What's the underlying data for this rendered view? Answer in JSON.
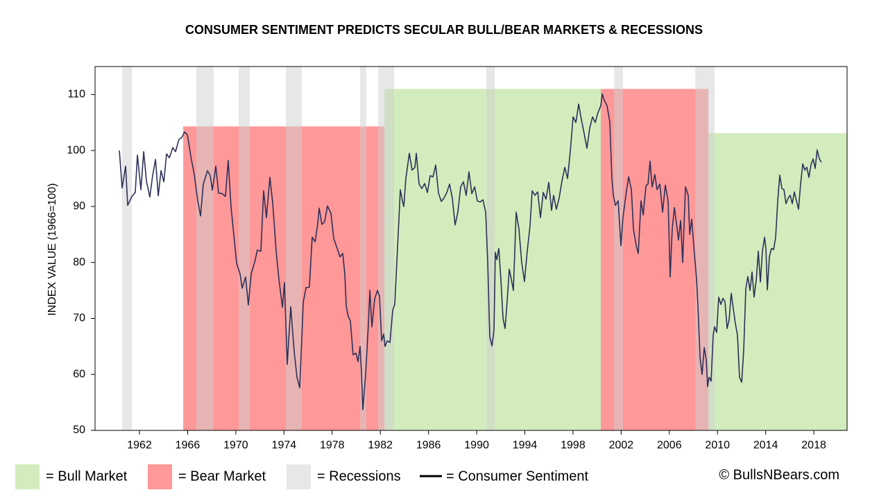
{
  "chart_data": {
    "type": "line",
    "title": "CONSUMER  SENTIMENT  PREDICTS SECULAR BULL/BEAR MARKETS & RECESSIONS",
    "y_label": "INDEX VALUE (1966=100)",
    "credit": "© BullsNBears.com",
    "xlim": [
      1958.31,
      2020.76
    ],
    "xticks": [
      1962,
      1966,
      1970,
      1974,
      1978,
      1982,
      1986,
      1990,
      1994,
      1998,
      2002,
      2006,
      2010,
      2014,
      2018
    ],
    "ylim": [
      50,
      115
    ],
    "yticks": [
      50,
      60,
      70,
      80,
      90,
      100,
      110
    ],
    "regions": [
      {
        "name": "= Bull Market",
        "color": "#d3ecbd",
        "spans": [
          {
            "x": [
              1982.34,
              2000.31
            ],
            "top": 111
          },
          {
            "x": [
              2009.24,
              2020.76
            ],
            "top": 103.1
          }
        ]
      },
      {
        "name": "= Bear Market",
        "color": "#ff9898",
        "spans": [
          {
            "x": [
              1965.63,
              1982.34
            ],
            "top": 104.3
          },
          {
            "x": [
              2000.31,
              2009.24
            ],
            "top": 111
          }
        ]
      },
      {
        "name": "= Recessions",
        "color": "#d0d0d0",
        "spans": [
          {
            "x": [
              1960.56,
              1961.37
            ]
          },
          {
            "x": [
              1966.72,
              1968.16
            ]
          },
          {
            "x": [
              1970.24,
              1971.16
            ]
          },
          {
            "x": [
              1974.16,
              1975.48
            ]
          },
          {
            "x": [
              1980.32,
              1980.84
            ]
          },
          {
            "x": [
              1981.82,
              1983.14
            ]
          },
          {
            "x": [
              1990.81,
              1991.5
            ]
          },
          {
            "x": [
              2001.41,
              2002.15
            ]
          },
          {
            "x": [
              2008.15,
              2009.76
            ]
          }
        ]
      }
    ],
    "series": [
      {
        "name": "= Consumer Sentiment",
        "color": "#2c3058",
        "x": [
          1960.33,
          1960.56,
          1960.85,
          1961.02,
          1961.37,
          1961.65,
          1961.83,
          1962.12,
          1962.35,
          1962.58,
          1962.86,
          1963.09,
          1963.33,
          1963.56,
          1963.79,
          1964.02,
          1964.25,
          1964.48,
          1964.77,
          1965.0,
          1965.28,
          1965.51,
          1965.74,
          1965.98,
          1966.26,
          1966.55,
          1966.84,
          1967.07,
          1967.3,
          1967.65,
          1967.88,
          1968.05,
          1968.34,
          1968.57,
          1968.86,
          1969.14,
          1969.37,
          1969.6,
          1969.83,
          1970.07,
          1970.35,
          1970.53,
          1970.81,
          1971.04,
          1971.28,
          1971.56,
          1971.79,
          1972.08,
          1972.31,
          1972.54,
          1972.83,
          1973.06,
          1973.35,
          1973.58,
          1973.87,
          1974.04,
          1974.27,
          1974.56,
          1974.85,
          1975.08,
          1975.31,
          1975.6,
          1975.83,
          1976.11,
          1976.34,
          1976.58,
          1976.81,
          1976.92,
          1977.15,
          1977.38,
          1977.61,
          1977.9,
          1978.13,
          1978.42,
          1978.65,
          1978.88,
          1979.05,
          1979.17,
          1979.34,
          1979.51,
          1979.74,
          1979.97,
          1980.15,
          1980.32,
          1980.44,
          1980.55,
          1980.78,
          1981.01,
          1981.13,
          1981.3,
          1981.53,
          1981.76,
          1981.93,
          1982.11,
          1982.28,
          1982.39,
          1982.57,
          1982.8,
          1983.03,
          1983.2,
          1983.37,
          1983.55,
          1983.66,
          1983.83,
          1983.95,
          1984.12,
          1984.41,
          1984.64,
          1984.87,
          1984.99,
          1985.22,
          1985.45,
          1985.68,
          1985.91,
          1986.14,
          1986.37,
          1986.6,
          1986.83,
          1987.06,
          1987.29,
          1987.52,
          1987.75,
          1987.98,
          1988.21,
          1988.44,
          1988.67,
          1988.9,
          1989.13,
          1989.36,
          1989.6,
          1989.83,
          1990.06,
          1990.29,
          1990.52,
          1990.75,
          1990.92,
          1991.09,
          1991.27,
          1991.44,
          1991.55,
          1991.67,
          1991.84,
          1992.02,
          1992.19,
          1992.36,
          1992.53,
          1992.71,
          1992.88,
          1993.05,
          1993.28,
          1993.51,
          1993.74,
          1993.97,
          1994.2,
          1994.43,
          1994.61,
          1994.84,
          1995.07,
          1995.3,
          1995.53,
          1995.76,
          1995.99,
          1996.22,
          1996.39,
          1996.62,
          1996.85,
          1997.08,
          1997.32,
          1997.55,
          1997.78,
          1998.01,
          1998.24,
          1998.47,
          1998.7,
          1998.93,
          1999.16,
          1999.39,
          1999.62,
          1999.85,
          2000.08,
          2000.31,
          2000.43,
          2000.6,
          2000.83,
          2001.06,
          2001.23,
          2001.35,
          2001.52,
          2001.75,
          2001.98,
          2002.15,
          2002.39,
          2002.62,
          2002.85,
          2003.02,
          2003.25,
          2003.42,
          2003.65,
          2003.83,
          2004.06,
          2004.23,
          2004.4,
          2004.57,
          2004.8,
          2004.98,
          2005.21,
          2005.44,
          2005.67,
          2005.9,
          2006.07,
          2006.24,
          2006.42,
          2006.59,
          2006.76,
          2006.94,
          2007.11,
          2007.34,
          2007.57,
          2007.69,
          2007.86,
          2008.03,
          2008.26,
          2008.38,
          2008.55,
          2008.72,
          2008.9,
          2009.07,
          2009.18,
          2009.3,
          2009.47,
          2009.64,
          2009.76,
          2009.93,
          2010.1,
          2010.28,
          2010.45,
          2010.62,
          2010.8,
          2010.97,
          2011.14,
          2011.31,
          2011.49,
          2011.66,
          2011.83,
          2012.01,
          2012.18,
          2012.35,
          2012.52,
          2012.7,
          2012.87,
          2013.04,
          2013.22,
          2013.39,
          2013.56,
          2013.73,
          2013.91,
          2014.02,
          2014.14,
          2014.31,
          2014.48,
          2014.66,
          2014.83,
          2015.0,
          2015.17,
          2015.35,
          2015.52,
          2015.69,
          2015.87,
          2016.04,
          2016.21,
          2016.38,
          2016.56,
          2016.73,
          2016.9,
          2017.08,
          2017.25,
          2017.42,
          2017.59,
          2017.77,
          2017.94,
          2018.11,
          2018.28,
          2018.46,
          2018.63
        ],
        "values": [
          100,
          93.3,
          97.2,
          90.2,
          91.8,
          92.5,
          99.2,
          93,
          99.8,
          94.5,
          91.7,
          95.5,
          98.4,
          91.9,
          96.4,
          94.4,
          99.4,
          98.7,
          100.5,
          99.8,
          102,
          102.3,
          103.3,
          102.8,
          99,
          95.7,
          91,
          88.3,
          94,
          96.4,
          95.5,
          92.9,
          97.2,
          92.4,
          92.3,
          91.8,
          98.2,
          90,
          85,
          79.8,
          78,
          75.4,
          77.4,
          72.4,
          78,
          80,
          82.2,
          82,
          92.8,
          88,
          95.2,
          90.7,
          82,
          77,
          72,
          76.4,
          61.8,
          72.1,
          64,
          59.5,
          57.6,
          72.9,
          75.5,
          75.6,
          84.5,
          83.7,
          87,
          89.7,
          86.8,
          87.3,
          90.1,
          88.8,
          84.3,
          82.5,
          81,
          81.6,
          78,
          72.2,
          70.3,
          69.6,
          63.5,
          63.8,
          62.3,
          65,
          60,
          53.7,
          60,
          69,
          75,
          68.5,
          73.5,
          75,
          74,
          66,
          67.2,
          65,
          66,
          65.7,
          71.5,
          72.5,
          80,
          88,
          93,
          91,
          90,
          95,
          99.5,
          96.5,
          97,
          99.5,
          94,
          93.2,
          94.1,
          92.5,
          95.5,
          95.3,
          97.4,
          92.4,
          90.9,
          91.5,
          92.5,
          94,
          91.5,
          86.7,
          89,
          93.5,
          94.4,
          92,
          96.2,
          92.3,
          93.5,
          91,
          90.8,
          91.2,
          89,
          80,
          66.7,
          65.1,
          68,
          81.8,
          80.5,
          82.5,
          76.7,
          70,
          68.2,
          73,
          78.8,
          77,
          75,
          89,
          86,
          80,
          76.6,
          82,
          86.5,
          92.8,
          92,
          92.6,
          88,
          92.5,
          91.3,
          94.3,
          89.3,
          92,
          89.5,
          91.5,
          94.5,
          97,
          95,
          100,
          106,
          105,
          108.3,
          105.5,
          103,
          100.4,
          104,
          106,
          105,
          106.8,
          108,
          110.1,
          109,
          108,
          105,
          95,
          92,
          90.2,
          91,
          83,
          88,
          92,
          95.3,
          93,
          86,
          83,
          81.6,
          91,
          88.5,
          93.7,
          94,
          98.1,
          93.5,
          95.7,
          93,
          94,
          89,
          93.8,
          91,
          77.4,
          86,
          89.8,
          87,
          84,
          87.5,
          80,
          93.5,
          92,
          85,
          87.7,
          83,
          77,
          72,
          63,
          60,
          64.8,
          62.5,
          57.8,
          59.5,
          58.8,
          67,
          68.5,
          67.5,
          73.8,
          72.5,
          73.6,
          73,
          68.2,
          69.8,
          74.5,
          71.8,
          69,
          67,
          59.5,
          58.6,
          64.5,
          75.3,
          77.5,
          75,
          78.3,
          73.8,
          76.9,
          82,
          76.5,
          82,
          84.5,
          82.5,
          75.1,
          81,
          82.5,
          82.3,
          84.5,
          91,
          95.6,
          93.2,
          93,
          90.5,
          91.5,
          92,
          90.5,
          92.6,
          91,
          89.5,
          94,
          97.6,
          96.5,
          97,
          95.2,
          97.5,
          98.5,
          96.8,
          100.1,
          98.5,
          97.9
        ]
      }
    ]
  }
}
